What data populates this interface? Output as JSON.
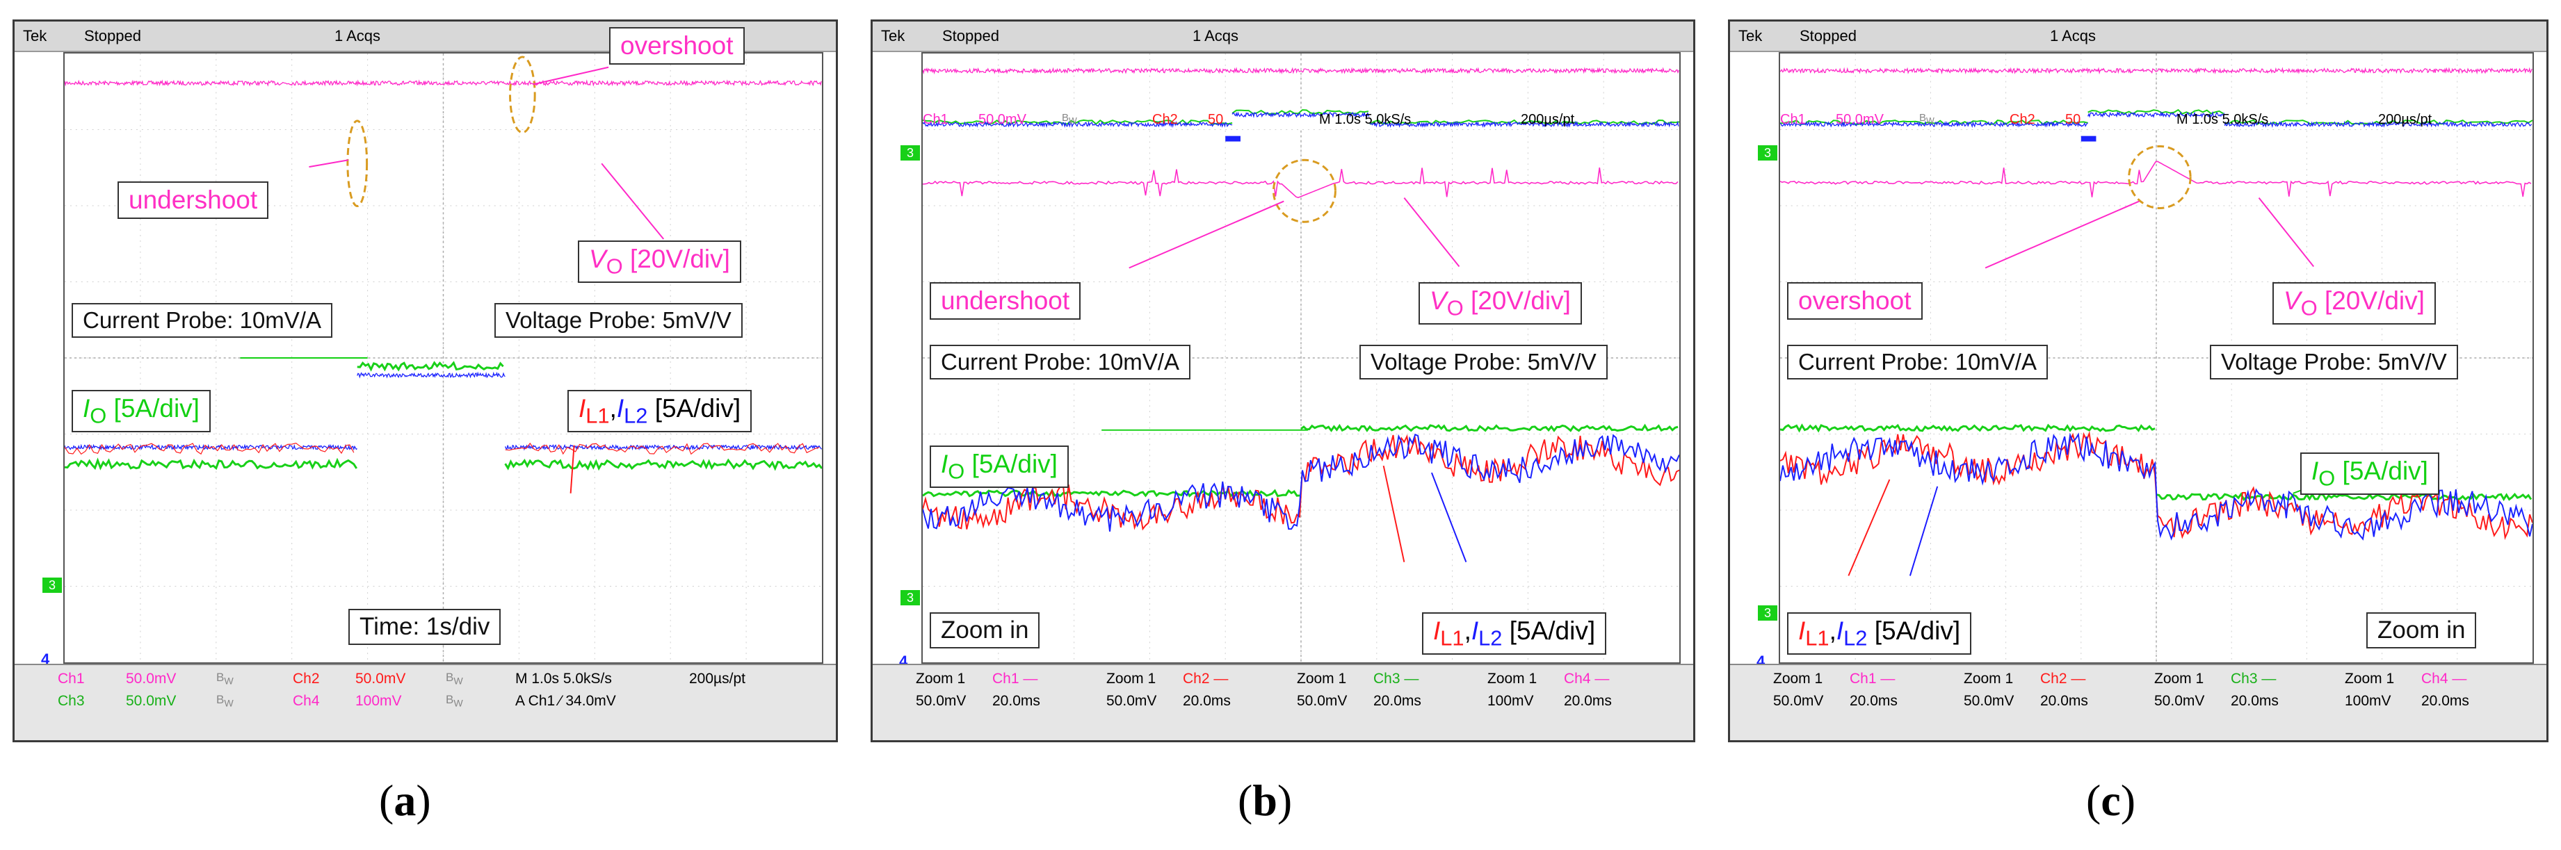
{
  "colors": {
    "ch1": "#ff28c8",
    "ch2": "#ff1a1a",
    "ch3": "#18d018",
    "ch4": "#1a22ff",
    "callout": "#ff2fc4",
    "green_label": "#12d012",
    "red_label": "#ff1a1a",
    "blue_label": "#1a1aff"
  },
  "header": {
    "brand": "Tek",
    "state": "Stopped",
    "acqs": "1 Acqs"
  },
  "panels": [
    {
      "id": "a",
      "caption": "a",
      "labels": {
        "overshoot": "overshoot",
        "undershoot": "undershoot",
        "vo": "V",
        "vo_sub": "O",
        "vo_scale": " [20V/div]",
        "current_probe": "Current Probe: 10mV/A",
        "voltage_probe": "Voltage Probe: 5mV/V",
        "io": "I",
        "io_sub": "O",
        "io_scale": " [5A/div]",
        "il1": "I",
        "il1_sub": "L1",
        "comma": ",",
        "il2": "I",
        "il2_sub": "L2",
        "il_scale": " [5A/div]",
        "time": "Time: 1s/div"
      },
      "footer": {
        "r1": [
          "Ch1",
          "50.0mV",
          "B",
          "W",
          "Ch2",
          "50.0mV",
          "B",
          "W",
          "M 1.0s 5.0kS/s",
          "200µs/pt"
        ],
        "r2": [
          "Ch3",
          "50.0mV",
          "B",
          "W",
          "Ch4",
          "100mV",
          "B",
          "W",
          "A  Ch1  ∕  34.0mV"
        ]
      }
    },
    {
      "id": "b",
      "caption": "b",
      "labels": {
        "undershoot": "undershoot",
        "vo": "V",
        "vo_sub": "O",
        "vo_scale": " [20V/div]",
        "current_probe": "Current Probe: 10mV/A",
        "voltage_probe": "Voltage Probe: 5mV/V",
        "io": "I",
        "io_sub": "O",
        "io_scale": " [5A/div]",
        "il1": "I",
        "il1_sub": "L1",
        "comma": ",",
        "il2": "I",
        "il2_sub": "L2",
        "il_scale": " [5A/div]",
        "zoom": "Zoom in",
        "mini": [
          "Ch1",
          "50.0mV",
          "B",
          "W",
          "Ch2",
          "50",
          "M 1.0s 5.0kS/s",
          "200µs/pt"
        ]
      },
      "footer": {
        "cols": [
          [
            "Zoom 1",
            "Ch1 —",
            "50.0mV",
            "20.0ms"
          ],
          [
            "Zoom 1",
            "Ch2 —",
            "50.0mV",
            "20.0ms"
          ],
          [
            "Zoom 1",
            "Ch3 —",
            "50.0mV",
            "20.0ms"
          ],
          [
            "Zoom 1",
            "Ch4 —",
            "100mV",
            "20.0ms"
          ]
        ]
      }
    },
    {
      "id": "c",
      "caption": "c",
      "labels": {
        "overshoot": "overshoot",
        "vo": "V",
        "vo_sub": "O",
        "vo_scale": " [20V/div]",
        "current_probe": "Current Probe: 10mV/A",
        "voltage_probe": "Voltage Probe: 5mV/V",
        "io": "I",
        "io_sub": "O",
        "io_scale": " [5A/div]",
        "il1": "I",
        "il1_sub": "L1",
        "comma": ",",
        "il2": "I",
        "il2_sub": "L2",
        "il_scale": " [5A/div]",
        "zoom": "Zoom in",
        "mini": [
          "Ch1",
          "50.0mV",
          "B",
          "W",
          "Ch2",
          "50",
          "M 1.0s 5.0kS/s",
          "200µs/pt"
        ]
      },
      "footer": {
        "cols": [
          [
            "Zoom 1",
            "Ch1 —",
            "50.0mV",
            "20.0ms"
          ],
          [
            "Zoom 1",
            "Ch2 —",
            "50.0mV",
            "20.0ms"
          ],
          [
            "Zoom 1",
            "Ch3 —",
            "50.0mV",
            "20.0ms"
          ],
          [
            "Zoom 1",
            "Ch4 —",
            "100mV",
            "20.0ms"
          ]
        ]
      }
    }
  ],
  "channel_markers": {
    "ch3": "3",
    "ch4": "4"
  }
}
